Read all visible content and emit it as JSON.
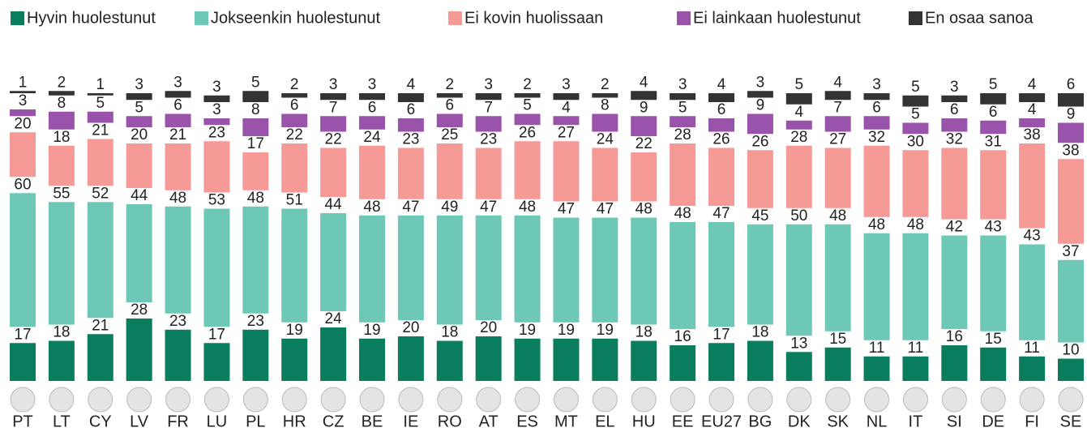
{
  "chart_data": {
    "type": "stacked-bar",
    "categories": [
      "PT",
      "LT",
      "CY",
      "LV",
      "FR",
      "LU",
      "PL",
      "HR",
      "CZ",
      "BE",
      "IE",
      "RO",
      "AT",
      "ES",
      "MT",
      "EL",
      "HU",
      "EE",
      "EU27",
      "BG",
      "DK",
      "SK",
      "NL",
      "IT",
      "SI",
      "DE",
      "FI",
      "SE"
    ],
    "series": [
      {
        "name": "Hyvin huolestunut",
        "color": "#0a7d5f",
        "values": [
          17,
          18,
          21,
          28,
          23,
          17,
          23,
          19,
          24,
          19,
          20,
          18,
          20,
          19,
          19,
          19,
          18,
          16,
          17,
          18,
          13,
          15,
          11,
          11,
          16,
          15,
          11,
          10
        ]
      },
      {
        "name": "Jokseenkin huolestunut",
        "color": "#6dc8b6",
        "values": [
          60,
          55,
          52,
          44,
          48,
          53,
          48,
          51,
          44,
          48,
          47,
          49,
          47,
          48,
          47,
          47,
          48,
          48,
          47,
          45,
          50,
          48,
          48,
          48,
          42,
          43,
          43,
          37
        ]
      },
      {
        "name": "Ei kovin huolissaan",
        "color": "#f59a96",
        "values": [
          20,
          18,
          21,
          20,
          21,
          23,
          17,
          22,
          22,
          24,
          23,
          25,
          23,
          26,
          27,
          24,
          22,
          28,
          26,
          26,
          28,
          27,
          32,
          30,
          32,
          31,
          38,
          38
        ]
      },
      {
        "name": "Ei lainkaan huolestunut",
        "color": "#9953ab",
        "values": [
          3,
          8,
          5,
          5,
          6,
          3,
          8,
          6,
          7,
          6,
          6,
          6,
          7,
          5,
          4,
          8,
          9,
          5,
          6,
          9,
          4,
          7,
          6,
          5,
          6,
          6,
          4,
          9
        ]
      },
      {
        "name": "En osaa sanoa",
        "color": "#333333",
        "values": [
          1,
          2,
          1,
          3,
          3,
          3,
          5,
          2,
          3,
          3,
          4,
          2,
          3,
          2,
          3,
          2,
          4,
          3,
          4,
          3,
          5,
          4,
          3,
          5,
          3,
          5,
          4,
          6
        ]
      }
    ]
  }
}
